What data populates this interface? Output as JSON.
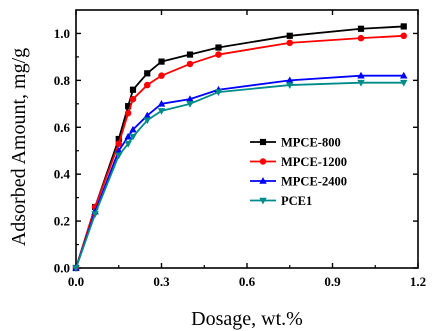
{
  "chart_data": {
    "type": "line",
    "title": "",
    "xlabel": "Dosage, wt.%",
    "ylabel": "Adsorbed Amount, mg/g",
    "xlim": [
      0.0,
      1.2
    ],
    "ylim": [
      0.0,
      1.1
    ],
    "xticks": [
      0.0,
      0.3,
      0.6,
      0.9,
      1.2
    ],
    "yticks": [
      0.0,
      0.2,
      0.4,
      0.6,
      0.8,
      1.0
    ],
    "xtick_labels": [
      "0.0",
      "0.3",
      "0.6",
      "0.9",
      "1.2"
    ],
    "ytick_labels": [
      "0.0",
      "0.2",
      "0.4",
      "0.6",
      "0.8",
      "1.0"
    ],
    "grid": false,
    "legend_position": "right-middle",
    "x": [
      0.0,
      0.067,
      0.15,
      0.183,
      0.2,
      0.25,
      0.3,
      0.4,
      0.5,
      0.75,
      1.0,
      1.15
    ],
    "series": [
      {
        "name": "MPCE-800",
        "color": "#000000",
        "marker": "square",
        "values": [
          0.0,
          0.26,
          0.55,
          0.69,
          0.76,
          0.83,
          0.88,
          0.91,
          0.94,
          0.99,
          1.02,
          1.03
        ]
      },
      {
        "name": "MPCE-1200",
        "color": "#ff0000",
        "marker": "circle",
        "values": [
          0.0,
          0.26,
          0.53,
          0.66,
          0.72,
          0.78,
          0.82,
          0.87,
          0.91,
          0.96,
          0.98,
          0.99
        ]
      },
      {
        "name": "MPCE-2400",
        "color": "#0000ff",
        "marker": "triangle-up",
        "values": [
          0.0,
          0.24,
          0.5,
          0.56,
          0.59,
          0.65,
          0.7,
          0.72,
          0.76,
          0.8,
          0.82,
          0.82
        ]
      },
      {
        "name": "PCE1",
        "color": "#008b8b",
        "marker": "triangle-down",
        "values": [
          0.0,
          0.23,
          0.48,
          0.53,
          0.56,
          0.63,
          0.67,
          0.7,
          0.75,
          0.78,
          0.79,
          0.79
        ]
      }
    ]
  }
}
